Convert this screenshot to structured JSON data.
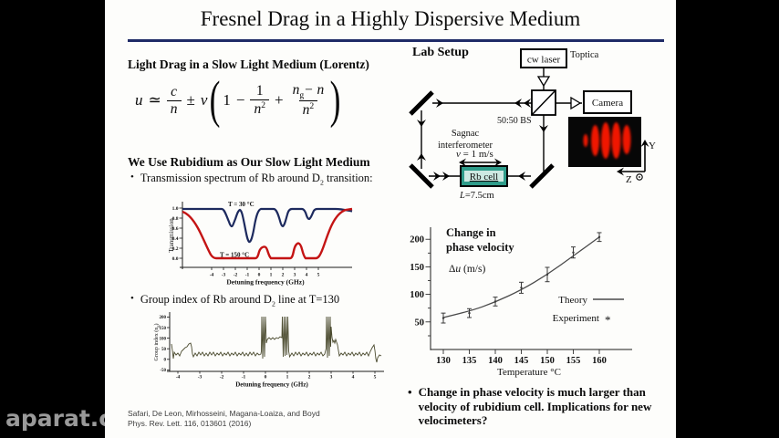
{
  "watermark": "aparat.co",
  "title": "Fresnel Drag in a Highly Dispersive Medium",
  "bullet_char": "•",
  "left": {
    "heading1": "Light Drag in a Slow Light Medium (Lorentz)",
    "equation": {
      "lhs": "u",
      "rel": "≃",
      "f1n": "c",
      "f1d": "n",
      "pm": "±",
      "coef": "v",
      "open": "(",
      "t1": "1",
      "minus": "−",
      "f2n": "1",
      "f2d": "n",
      "f2exp": "2",
      "plus": "+",
      "f3nb": "n",
      "f3ns": "g",
      "f3nt": "− n",
      "f3d": "n",
      "f3exp": "2",
      "close": ")"
    },
    "heading2": "We Use Rubidium as Our Slow Light Medium",
    "bullet1": {
      "pre": "Transmission spectrum of Rb around D",
      "sub": "2",
      "post": " transition:"
    },
    "bullet2": {
      "pre": "Group index of Rb around D",
      "sub": "2",
      "post": " line at T=130"
    },
    "citation_line1": "Safari,  De Leon, Mirhosseini,  Magana-Loaiza, and Boyd",
    "citation_line2": "Phys. Rev. Lett. 116, 013601 (2016)"
  },
  "lab": {
    "heading": "Lab Setup",
    "laser_label": "cw laser",
    "laser_brand": "Toptica",
    "camera_label": "Camera",
    "bs_label": "50:50 BS",
    "sagnac_line1": "Sagnac",
    "sagnac_line2": "interferometer",
    "velocity_var": "v",
    "velocity_rest": " = 1 m/s",
    "cell_label": "Rb cell",
    "length_var": "L",
    "length_rest": "=7.5cm",
    "axis_y": "Y",
    "axis_z": "Z"
  },
  "bullet3": "Change in phase velocity is much larger than velocity of rubidium cell.  Implications for new velocimeters?",
  "chart_data": [
    {
      "type": "line",
      "name": "rb-transmission-spectrum",
      "xlabel": "Detuning frequency (GHz)",
      "ylabel": "Transmission",
      "xticks": [
        -4,
        -3,
        -2,
        -1,
        0,
        1,
        2,
        3,
        4,
        5
      ],
      "ytick_labels": [
        "0.0",
        "0.2",
        "0.4",
        "0.6",
        "0.8",
        "1.0"
      ],
      "xlim": [
        -6.5,
        7.5
      ],
      "ylim": [
        0,
        1
      ],
      "grid": false,
      "series": [
        {
          "name": "T = 30 °C",
          "color": "#1d2a5e",
          "x": [
            -6,
            -3.3,
            -2.6,
            -2.1,
            -1.5,
            -0.9,
            0.9,
            1.6,
            2.3,
            3.4,
            3.8,
            4.2,
            7
          ],
          "y": [
            1.0,
            1.0,
            0.62,
            0.95,
            0.3,
            1.0,
            1.0,
            0.62,
            1.0,
            1.0,
            0.78,
            1.0,
            0.97
          ]
        },
        {
          "name": "T = 150 °C",
          "color": "#c41414",
          "x": [
            -6.4,
            -5,
            -4,
            -3.4,
            -0.4,
            0.1,
            0.6,
            2.5,
            3.0,
            3.5,
            4.8,
            5.8,
            7
          ],
          "y": [
            0.93,
            0.82,
            0.35,
            0.0,
            0.0,
            0.22,
            0.0,
            0.0,
            0.3,
            0.0,
            0.0,
            0.75,
            0.95
          ]
        }
      ]
    },
    {
      "type": "line",
      "name": "rb-group-index",
      "xlabel": "Detuning frequency (GHz)",
      "ylabel": "Group index (ng)",
      "ylabel_parts": {
        "pre": "Group index (n",
        "sub": "g",
        "post": ")"
      },
      "xticks": [
        -4,
        -3,
        -2,
        -1,
        0,
        1,
        2,
        3,
        4,
        5
      ],
      "yticks": [
        -50,
        0,
        50,
        100,
        150,
        200
      ],
      "xlim": [
        -4.6,
        5.5
      ],
      "ylim": [
        -50,
        200
      ],
      "grid": false,
      "series": [
        {
          "name": "ng at T=130",
          "color": "#4b4b2f",
          "x": [
            -4.4,
            -3.9,
            -3.5,
            -3.3,
            -3.1,
            -2,
            -1,
            -0.2,
            -0.05,
            0.3,
            0.6,
            0.85,
            1.0,
            1.2,
            2,
            2.7,
            2.85,
            3.0,
            3.15,
            3.3,
            4,
            4.9,
            5.0,
            5.1,
            5.3
          ],
          "y": [
            45,
            15,
            50,
            60,
            18,
            20,
            20,
            25,
            200,
            90,
            85,
            200,
            200,
            22,
            20,
            24,
            200,
            200,
            70,
            25,
            20,
            55,
            60,
            -20,
            10
          ]
        }
      ]
    },
    {
      "type": "line+scatter",
      "name": "phase-velocity-change",
      "title": "Change in phase velocity",
      "title_lines": [
        "Change in",
        "phase velocity"
      ],
      "ylabel": "Δu (m/s)",
      "ylabel_parts": {
        "delta": "Δ",
        "u": "u",
        "units": " (m/s)"
      },
      "xlabel": "Temperature °C",
      "xticks": [
        130,
        135,
        140,
        145,
        150,
        155,
        160
      ],
      "yticks": [
        50,
        100,
        150,
        200
      ],
      "xlim": [
        127.5,
        161
      ],
      "ylim": [
        0,
        225
      ],
      "grid": false,
      "legend": [
        {
          "label": "Theory",
          "marker": "line"
        },
        {
          "label": "Experiment",
          "marker": "*"
        }
      ],
      "series": [
        {
          "name": "Theory",
          "type": "line",
          "color": "#4a4a4a",
          "x": [
            130,
            135,
            140,
            145,
            150,
            155,
            160
          ],
          "y": [
            58,
            69,
            86,
            108,
            136,
            170,
            204
          ]
        },
        {
          "name": "Experiment",
          "type": "scatter",
          "color": "#3a3a3a",
          "x": [
            130,
            135,
            140,
            145,
            150,
            155,
            160
          ],
          "y": [
            57,
            66,
            87,
            112,
            136,
            176,
            204
          ],
          "yerr": [
            9,
            8,
            8,
            10,
            13,
            10,
            8
          ]
        }
      ]
    }
  ]
}
